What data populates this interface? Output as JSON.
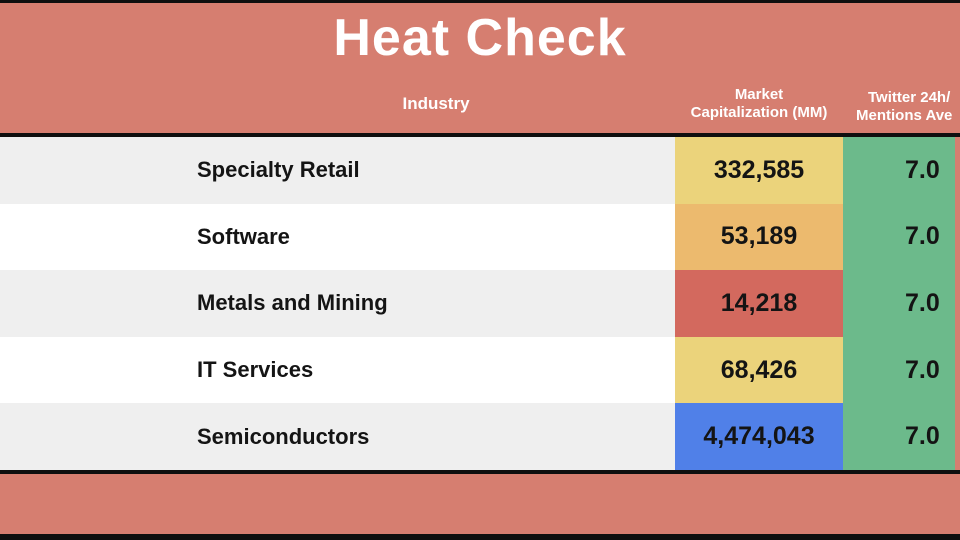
{
  "title": "Heat Check",
  "colors": {
    "background": "#d67e70",
    "line": "#0f0f0f",
    "row_alt": "#efefef",
    "row_white": "#ffffff",
    "green": "#6cba8b",
    "yellow": "#ebd37b",
    "orange": "#ecba6e",
    "red": "#d3695e",
    "blue": "#5080e8"
  },
  "header": {
    "industry": "Industry",
    "market_cap_line1": "Market",
    "market_cap_line2": "Capitalization (MM)",
    "twitter_line1": "Twitter 24h/",
    "twitter_line2": "Mentions Ave"
  },
  "table": {
    "rows": [
      {
        "industry": "Specialty Retail",
        "market_cap": "332,585",
        "market_cap_color": "#ebd37b",
        "mentions": "7.0"
      },
      {
        "industry": "Software",
        "market_cap": "53,189",
        "market_cap_color": "#ecba6e",
        "mentions": "7.0"
      },
      {
        "industry": "Metals and Mining",
        "market_cap": "14,218",
        "market_cap_color": "#d3695e",
        "mentions": "7.0"
      },
      {
        "industry": "IT Services",
        "market_cap": "68,426",
        "market_cap_color": "#ebd37b",
        "mentions": "7.0"
      },
      {
        "industry": "Semiconductors",
        "market_cap": "4,474,043",
        "market_cap_color": "#5080e8",
        "mentions": "7.0"
      }
    ]
  },
  "chart_data": {
    "type": "table",
    "title": "Heat Check",
    "columns": [
      "Industry",
      "Market Capitalization (MM)",
      "Twitter 24h/ Mentions Ave"
    ],
    "rows": [
      [
        "Specialty Retail",
        332585,
        7.0
      ],
      [
        "Software",
        53189,
        7.0
      ],
      [
        "Metals and Mining",
        14218,
        7.0
      ],
      [
        "IT Services",
        68426,
        7.0
      ],
      [
        "Semiconductors",
        4474043,
        7.0
      ]
    ],
    "layout_hints": {
      "market_cap_heat_colors": [
        "#ebd37b",
        "#ecba6e",
        "#d3695e",
        "#ebd37b",
        "#5080e8"
      ],
      "mentions_column_color": "#6cba8b",
      "row_striping": [
        "#efefef",
        "#ffffff"
      ],
      "right_column_clipped": true
    }
  }
}
